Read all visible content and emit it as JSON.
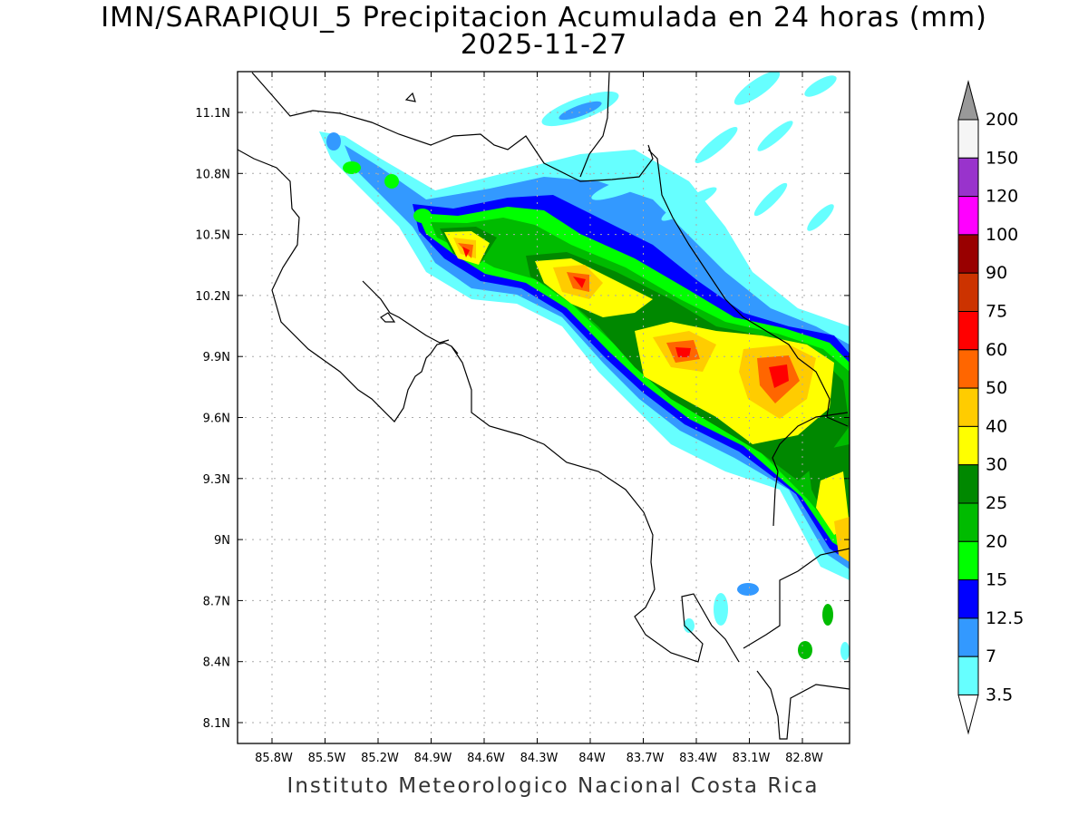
{
  "title": {
    "line1": "IMN/SARAPIQUI_5 Precipitacion Acumulada en 24 horas (mm)",
    "line2": "2025-11-27"
  },
  "footer": "Instituto Meteorologico Nacional Costa Rica",
  "map": {
    "lat_labels": [
      "11.1N",
      "10.8N",
      "10.5N",
      "10.2N",
      "9.9N",
      "9.6N",
      "9.3N",
      "9N",
      "8.7N",
      "8.4N",
      "8.1N"
    ],
    "lon_labels": [
      "85.8W",
      "85.5W",
      "85.2W",
      "84.9W",
      "84.6W",
      "84.3W",
      "84W",
      "83.7W",
      "83.4W",
      "83.1W",
      "82.8W"
    ],
    "grid": "dotted"
  },
  "legend": {
    "values": [
      "200",
      "150",
      "120",
      "100",
      "90",
      "75",
      "60",
      "50",
      "40",
      "30",
      "25",
      "20",
      "15",
      "12.5",
      "7",
      "3.5"
    ],
    "colors": [
      "#f5f5f5",
      "#9933cc",
      "#ff00ff",
      "#990000",
      "#cc3300",
      "#ff0000",
      "#ff6600",
      "#ffcc00",
      "#ffff00",
      "#008800",
      "#00bb00",
      "#00ff00",
      "#0000ff",
      "#3399ff",
      "#66ffff"
    ],
    "cap_top_color": "#999999",
    "cap_bottom_color": "#ffffff"
  },
  "palette": {
    "c3_5": "#66ffff",
    "c7": "#3399ff",
    "c12_5": "#0000ff",
    "c15": "#00ff00",
    "c20": "#00bb00",
    "c25": "#008800",
    "c30": "#ffff00",
    "c40": "#ffcc00",
    "c50": "#ff6600",
    "c60": "#ff0000"
  }
}
